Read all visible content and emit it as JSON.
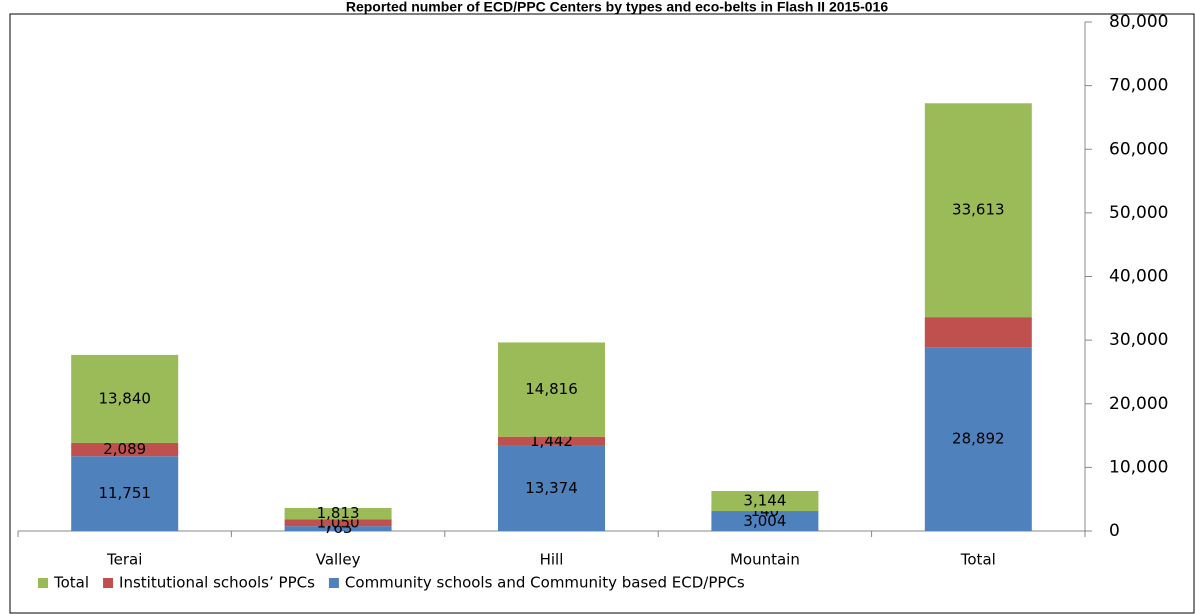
{
  "chart_data": {
    "type": "stacked-bar",
    "title": "Reported number of ECD/PPC Centers by types and eco-belts in Flash II 2015-016",
    "categories": [
      "Terai",
      "Valley",
      "Hill",
      "Mountain",
      "Total"
    ],
    "series": [
      {
        "name": "Community schools and Community based ECD/PPCs",
        "color": "#4f81bd",
        "values": [
          11751,
          763,
          13374,
          3004,
          28892
        ],
        "value_labels": [
          "11,751",
          "763",
          "13,374",
          "3,004",
          "28,892"
        ]
      },
      {
        "name": "Institutional schools’ PPCs",
        "color": "#c0504d",
        "values": [
          2089,
          1050,
          1442,
          140,
          4721
        ],
        "value_labels": [
          "2,089",
          "1,050",
          "1,442",
          "140",
          null
        ]
      },
      {
        "name": "Total",
        "color": "#9bbb59",
        "values": [
          13840,
          1813,
          14816,
          3144,
          33613
        ],
        "value_labels": [
          "13,840",
          "1,813",
          "14,816",
          "3,144",
          "33,613"
        ]
      }
    ],
    "legend_order": [
      2,
      1,
      0
    ],
    "ylim": [
      0,
      80000
    ],
    "yticks": [
      0,
      {
        "value": 10000,
        "label": "10,000"
      },
      {
        "value": 20000,
        "label": "20,000"
      },
      {
        "value": 30000,
        "label": "30,000"
      },
      {
        "value": 40000,
        "label": "40,000"
      },
      {
        "value": 50000,
        "label": "50,000"
      },
      {
        "value": 60000,
        "label": "60,000"
      },
      {
        "value": 70000,
        "label": "70,000"
      },
      {
        "value": 80000,
        "label": "80,000"
      }
    ],
    "grid": false,
    "yaxis_side": "right",
    "legend": "bottom"
  }
}
